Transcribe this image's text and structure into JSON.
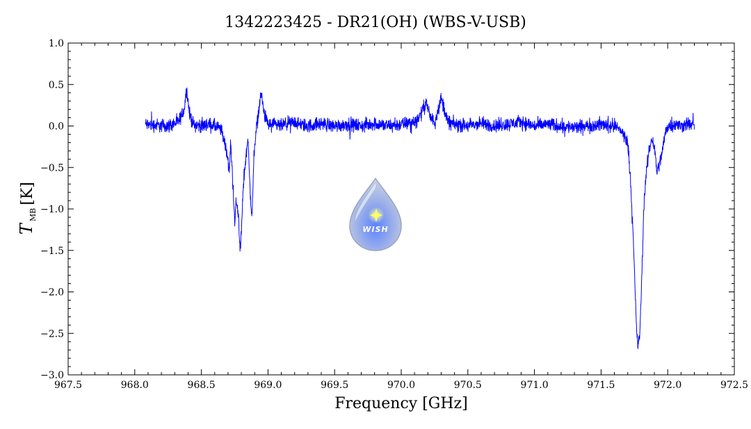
{
  "chart_data": {
    "type": "line",
    "title": "1342223425 - DR21(OH) (WBS-V-USB)",
    "xlabel": "Frequency [GHz]",
    "ylabel": {
      "symbol": "T",
      "subscript": "MB",
      "unit": "[K]"
    },
    "xlim": [
      967.5,
      972.5
    ],
    "ylim": [
      -3.0,
      1.0
    ],
    "xticks": [
      967.5,
      968.0,
      968.5,
      969.0,
      969.5,
      970.0,
      970.5,
      971.0,
      971.5,
      972.0,
      972.5
    ],
    "yticks": [
      -3.0,
      -2.5,
      -2.0,
      -1.5,
      -1.0,
      -0.5,
      0.0,
      0.5,
      1.0
    ],
    "xtick_labels": [
      "967.5",
      "968.0",
      "968.5",
      "969.0",
      "969.5",
      "970.0",
      "970.5",
      "971.0",
      "971.5",
      "972.0",
      "972.5"
    ],
    "ytick_labels": [
      "−3.0",
      "−2.5",
      "−2.0",
      "−1.5",
      "−1.0",
      "−0.5",
      "0.0",
      "0.5",
      "1.0"
    ],
    "grid": false,
    "series": [
      {
        "color": "#0000ff",
        "x": [
          968.08,
          968.15,
          968.25,
          968.33,
          968.37,
          968.39,
          968.41,
          968.44,
          968.5,
          968.55,
          968.6,
          968.65,
          968.69,
          968.71,
          968.72,
          968.74,
          968.75,
          968.76,
          968.78,
          968.79,
          968.8,
          968.81,
          968.82,
          968.84,
          968.85,
          968.86,
          968.87,
          968.88,
          968.89,
          968.9,
          968.92,
          968.94,
          968.95,
          968.97,
          969.0,
          969.1,
          969.2,
          969.23,
          969.3,
          969.4,
          969.5,
          969.6,
          969.7,
          969.8,
          969.9,
          970.0,
          970.1,
          970.15,
          970.19,
          970.2,
          970.22,
          970.25,
          970.28,
          970.3,
          970.32,
          970.35,
          970.4,
          970.5,
          970.6,
          970.7,
          970.8,
          970.9,
          971.0,
          971.1,
          971.2,
          971.3,
          971.4,
          971.5,
          971.6,
          971.65,
          971.7,
          971.72,
          971.74,
          971.76,
          971.77,
          971.78,
          971.79,
          971.8,
          971.81,
          971.82,
          971.84,
          971.86,
          971.88,
          971.9,
          971.92,
          971.94,
          971.96,
          971.98,
          972.0,
          972.05,
          972.1,
          972.15,
          972.2
        ],
        "y": [
          0.02,
          0.01,
          0.0,
          0.05,
          0.2,
          0.45,
          0.15,
          0.02,
          0.0,
          0.02,
          0.0,
          -0.05,
          -0.3,
          -0.55,
          -0.2,
          -0.8,
          -1.2,
          -0.9,
          -1.1,
          -1.5,
          -1.3,
          -0.9,
          -0.6,
          -0.3,
          -0.1,
          -0.6,
          -0.9,
          -1.1,
          -0.6,
          -0.2,
          0.05,
          0.3,
          0.4,
          0.15,
          0.02,
          0.0,
          0.05,
          0.02,
          0.0,
          0.03,
          0.0,
          0.02,
          0.0,
          0.03,
          0.0,
          0.02,
          0.05,
          0.15,
          0.3,
          0.2,
          0.1,
          0.05,
          0.22,
          0.33,
          0.22,
          0.05,
          0.02,
          0.0,
          0.03,
          0.0,
          0.02,
          0.05,
          0.0,
          0.02,
          0.0,
          -0.02,
          0.0,
          0.02,
          0.0,
          -0.05,
          -0.2,
          -0.6,
          -1.3,
          -2.2,
          -2.55,
          -2.65,
          -2.5,
          -2.1,
          -1.6,
          -1.0,
          -0.55,
          -0.3,
          -0.15,
          -0.25,
          -0.55,
          -0.45,
          -0.3,
          -0.1,
          0.0,
          0.02,
          0.0,
          0.03,
          0.0
        ]
      }
    ]
  },
  "logo": {
    "text": "WISH",
    "icon": "droplet-star-logo"
  }
}
